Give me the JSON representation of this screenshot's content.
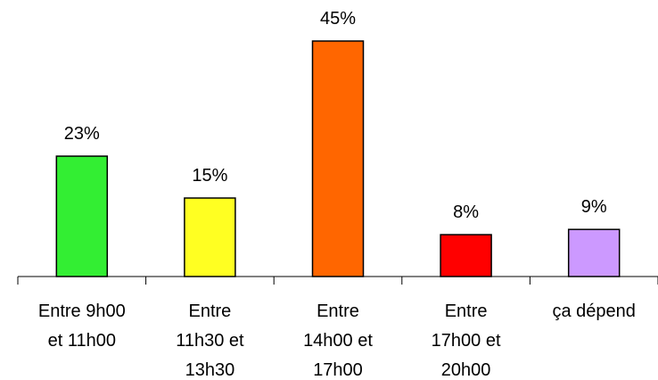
{
  "chart_data": {
    "type": "bar",
    "categories": [
      [
        "Entre 9h00",
        "et 11h00"
      ],
      [
        "Entre",
        "11h30 et",
        "13h30"
      ],
      [
        "Entre",
        "14h00 et",
        "17h00"
      ],
      [
        "Entre",
        "17h00 et",
        "20h00"
      ],
      [
        "ça dépend"
      ]
    ],
    "values": [
      23,
      15,
      45,
      8,
      9
    ],
    "data_labels": [
      "23%",
      "15%",
      "45%",
      "8%",
      "9%"
    ],
    "bar_colors": [
      "#33ee33",
      "#ffff22",
      "#ff6600",
      "#ff0000",
      "#cc99ff"
    ],
    "bar_edge_color": "#000000",
    "ylim": [
      0,
      45
    ],
    "title": "",
    "xlabel": "",
    "ylabel": "",
    "grid": false,
    "legend": "none"
  }
}
